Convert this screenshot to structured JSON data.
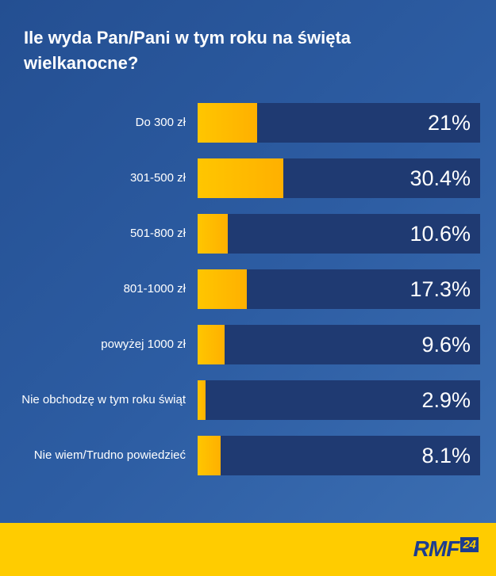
{
  "chart_data": {
    "type": "bar",
    "orientation": "horizontal",
    "title": "Ile wyda Pan/Pani w tym roku na święta wielkanocne?",
    "categories": [
      "Do 300 zł",
      "301-500 zł",
      "501-800 zł",
      "801-1000 zł",
      "powyżej 1000 zł",
      "Nie obchodzę w tym roku świąt",
      "Nie wiem/Trudno powiedzieć"
    ],
    "value_labels": [
      "21%",
      "30.4%",
      "10.6%",
      "17.3%",
      "9.6%",
      "2.9%",
      "8.1%"
    ],
    "values": [
      21,
      30.4,
      10.6,
      17.3,
      9.6,
      2.9,
      8.1
    ],
    "xlim": [
      0,
      100
    ],
    "colors": {
      "bar": "#ffc600",
      "track": "#1f3a72",
      "background": "#2d5da3"
    }
  },
  "brand": {
    "logo_text": "RMF",
    "logo_badge": "24",
    "color": "#1d3d8f"
  }
}
